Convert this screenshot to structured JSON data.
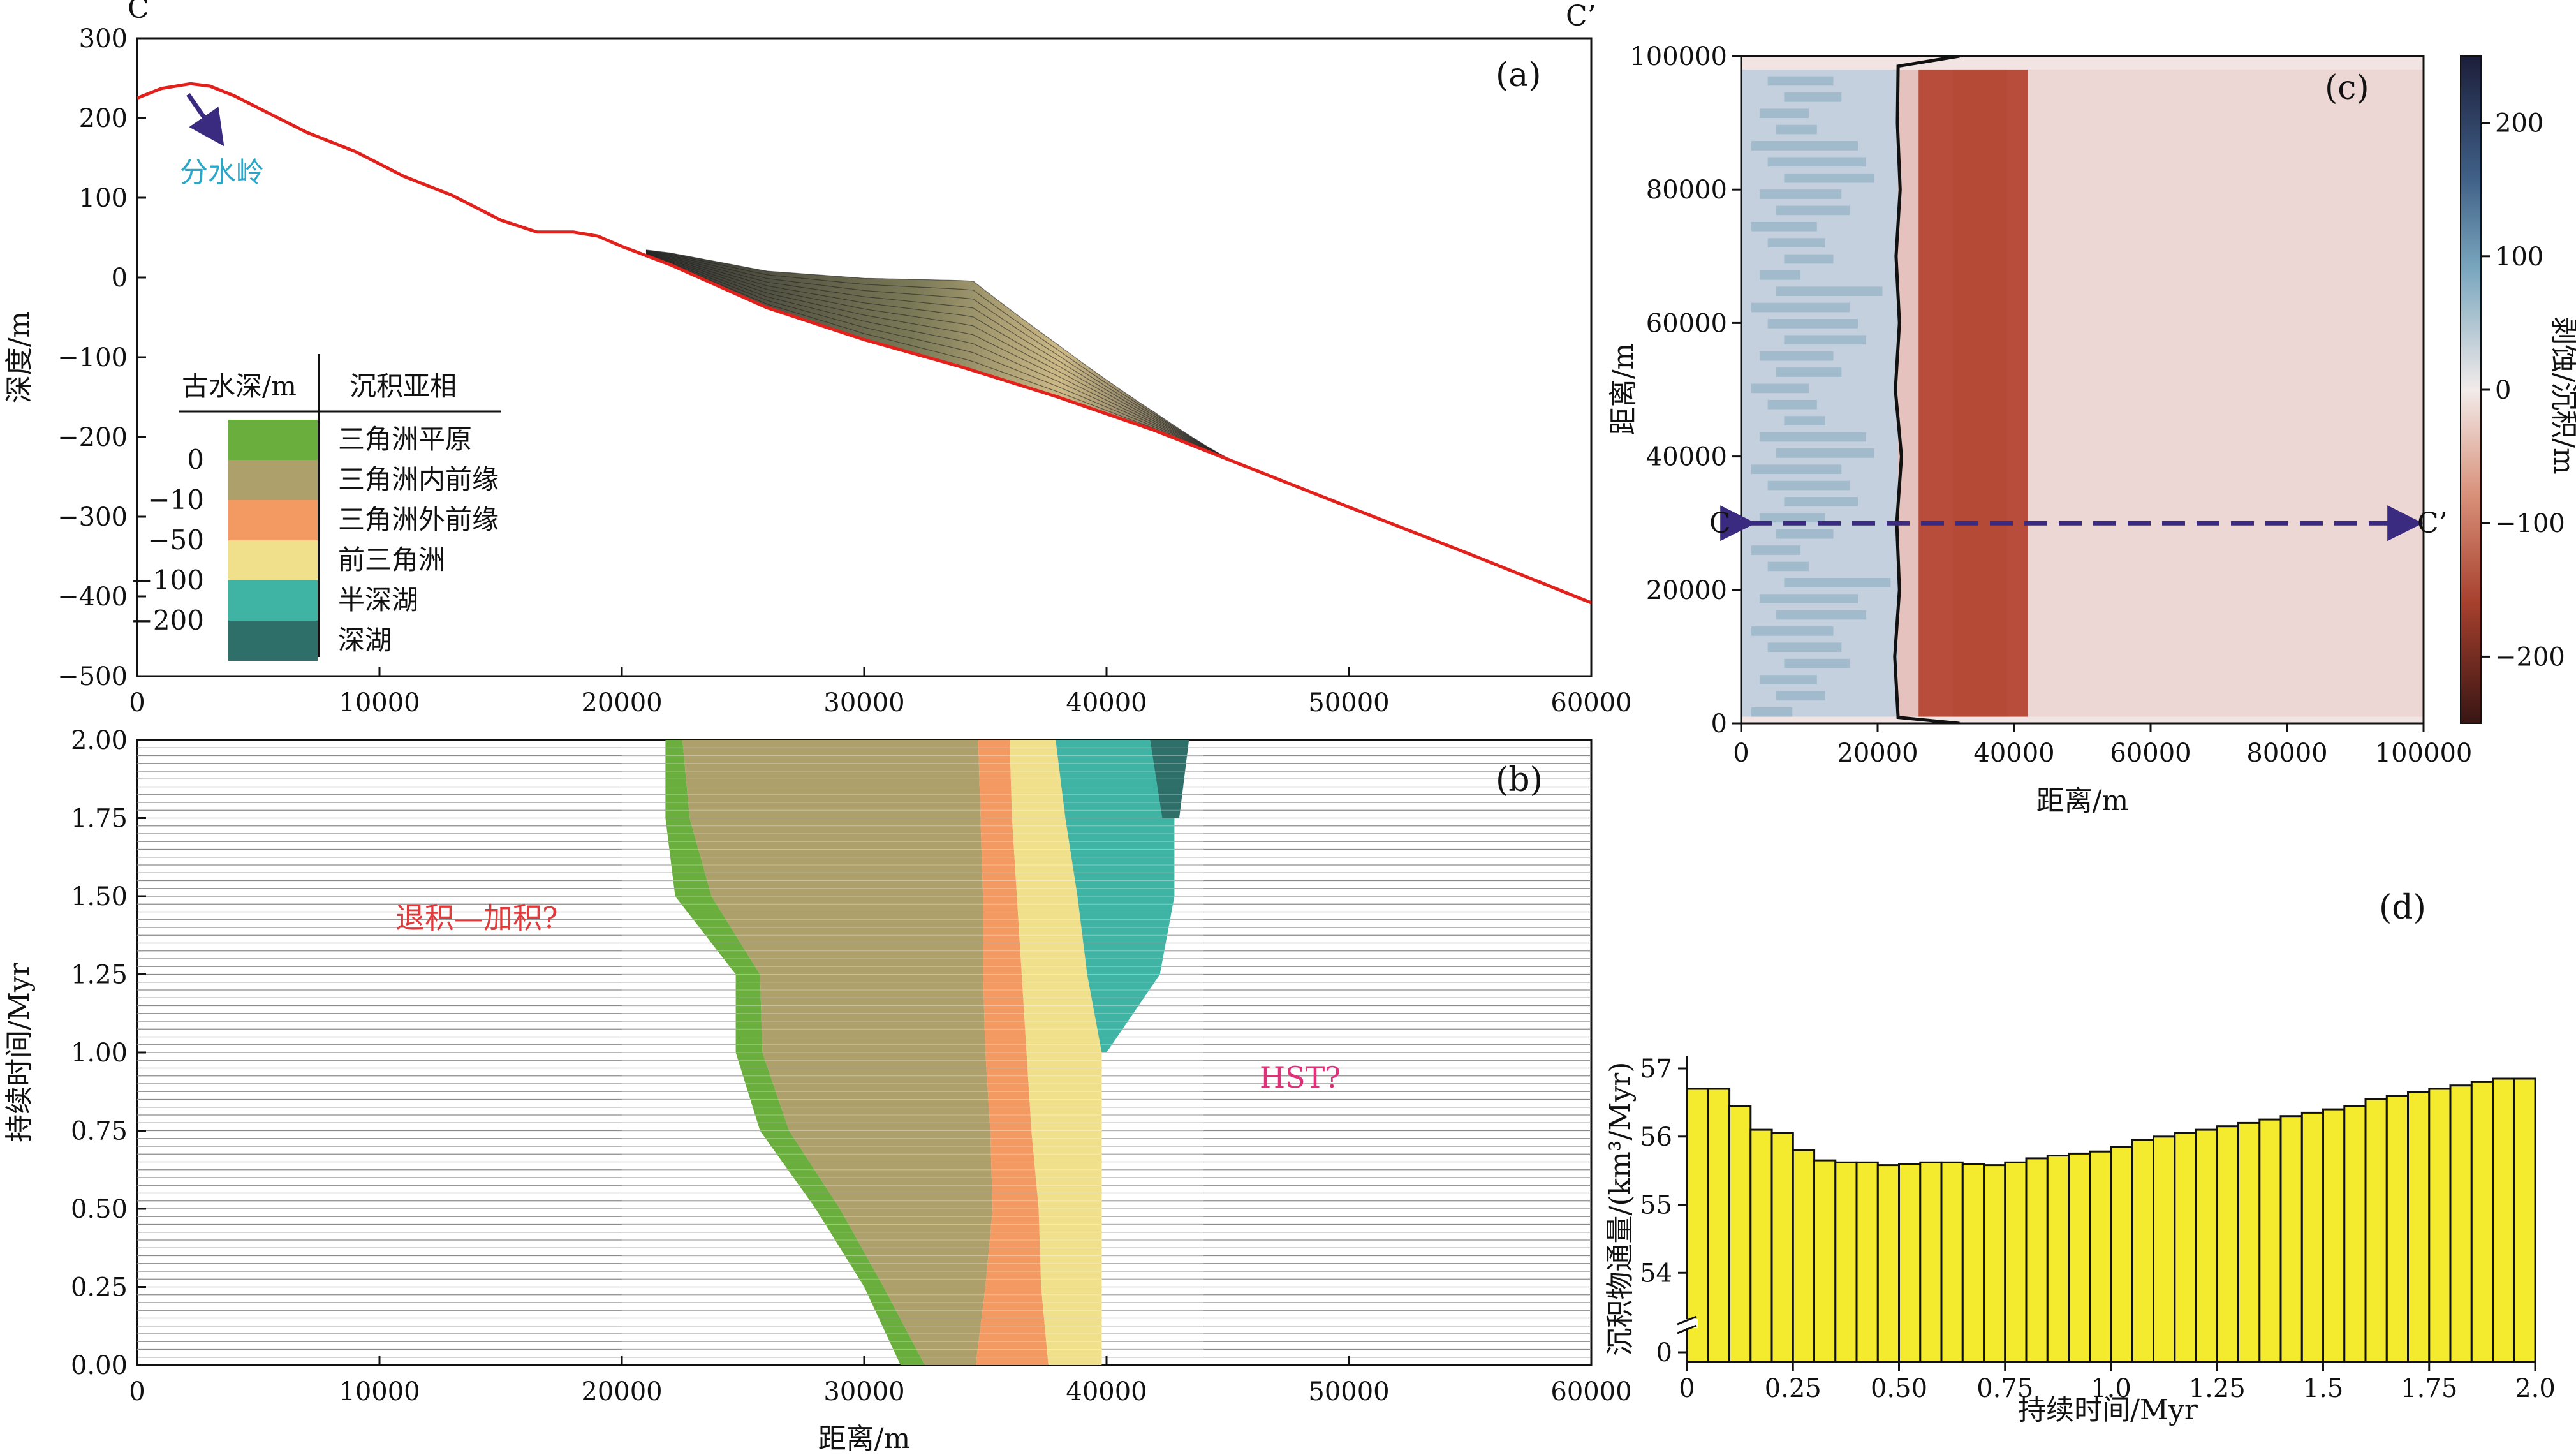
{
  "colors": {
    "profile": "#e2211c",
    "arrow": "#3a2a80",
    "label_cyan": "#2aa6c9",
    "label_red": "#e03a3a",
    "label_magenta": "#e0307a",
    "bar_yellow": "#f5eb2e",
    "delta_plain": "#6aae3d",
    "inner_front": "#ada06b",
    "outer_front": "#f39a62",
    "prodelta": "#f0e08c",
    "semi_deep": "#3fb4a4",
    "deep": "#2e6f6a"
  },
  "panel_a": {
    "label": "(a)",
    "left_marker": "C",
    "right_marker": "C’",
    "ylabel": "深度/m",
    "divide_label": "分水岭",
    "legend": {
      "depth_title": "古水深/m",
      "facies_title": "沉积亚相",
      "depth_ticks": [
        "0",
        "−10",
        "−50",
        "−100",
        "−200"
      ],
      "facies": [
        "三角洲平原",
        "三角洲内前缘",
        "三角洲外前缘",
        "前三角洲",
        "半深湖",
        "深湖"
      ]
    },
    "xticks": [
      "0",
      "10000",
      "20000",
      "30000",
      "40000",
      "50000",
      "60000"
    ],
    "yticks": [
      "300",
      "200",
      "100",
      "0",
      "−100",
      "−200",
      "−300",
      "−400",
      "−500"
    ]
  },
  "panel_b": {
    "label": "(b)",
    "ylabel": "持续时间/Myr",
    "xlabel": "距离/m",
    "note_left": "退积—加积?",
    "note_right": "HST?",
    "xticks": [
      "0",
      "10000",
      "20000",
      "30000",
      "40000",
      "50000",
      "60000"
    ],
    "yticks": [
      "0.00",
      "0.25",
      "0.50",
      "0.75",
      "1.00",
      "1.25",
      "1.50",
      "1.75",
      "2.00"
    ]
  },
  "panel_c": {
    "label": "(c)",
    "xlabel": "距离/m",
    "ylabel": "距离/m",
    "colorbar_label": "剥蚀/沉积/m",
    "left_marker": "C",
    "right_marker": "C’",
    "xticks": [
      "0",
      "20000",
      "40000",
      "60000",
      "80000",
      "100000"
    ],
    "yticks": [
      "0",
      "20000",
      "40000",
      "60000",
      "80000",
      "100000"
    ],
    "cbar_ticks": [
      "200",
      "100",
      "0",
      "−100",
      "−200"
    ]
  },
  "panel_d": {
    "label": "(d)",
    "xlabel": "持续时间/Myr",
    "ylabel": "沉积物通量/(km³/Myr)",
    "xticks": [
      "0",
      "0.25",
      "0.50",
      "0.75",
      "1.0",
      "1.25",
      "1.5",
      "1.75",
      "2.0"
    ],
    "yticks": [
      "57",
      "56",
      "55",
      "54",
      "0"
    ]
  },
  "chart_data": [
    {
      "type": "line",
      "title": "",
      "xlabel": "",
      "ylabel": "深度/m",
      "xlim": [
        0,
        60000
      ],
      "ylim": [
        -500,
        300
      ],
      "series": [
        {
          "name": "",
          "x": [
            0,
            1000,
            2200,
            3000,
            4000,
            5500,
            7000,
            9000,
            11000,
            13000,
            15000,
            16500,
            18000,
            19000,
            20000,
            22000,
            26000,
            30000,
            34000,
            38000,
            42000,
            45000,
            50000,
            55000,
            60000
          ],
          "y": [
            225,
            237,
            243,
            240,
            228,
            205,
            182,
            158,
            127,
            103,
            72,
            57,
            57,
            52,
            39,
            16,
            -38,
            -78,
            -112,
            -150,
            -192,
            -228,
            -288,
            -347,
            -408
          ]
        }
      ]
    },
    {
      "type": "area",
      "title": "",
      "xlabel": "距离/m",
      "ylabel": "持续时间/Myr",
      "xlim": [
        0,
        60000
      ],
      "ylim": [
        0,
        2
      ],
      "time": [
        0.0,
        0.25,
        0.5,
        0.75,
        1.0,
        1.25,
        1.5,
        1.75,
        2.0
      ],
      "series": [
        {
          "name": "三角洲平原",
          "left": [
            31500,
            30000,
            28000,
            25700,
            24700,
            24700,
            22200,
            21800,
            21800
          ],
          "right": [
            32500,
            30800,
            29000,
            26900,
            25800,
            25700,
            23700,
            22800,
            22500
          ]
        },
        {
          "name": "三角洲内前缘",
          "left": [
            32500,
            30800,
            29000,
            26900,
            25800,
            25700,
            23700,
            22800,
            22500
          ],
          "right": [
            34600,
            35000,
            35300,
            35200,
            35000,
            34900,
            34900,
            34800,
            34700
          ]
        },
        {
          "name": "三角洲外前缘",
          "left": [
            34600,
            35000,
            35300,
            35200,
            35000,
            34900,
            34900,
            34800,
            34700
          ],
          "right": [
            37600,
            37300,
            37200,
            36900,
            36700,
            36500,
            36300,
            36100,
            36000
          ]
        },
        {
          "name": "前三角洲",
          "left": [
            37600,
            37300,
            37200,
            36900,
            36700,
            36500,
            36300,
            36100,
            36000
          ],
          "right": [
            39800,
            39800,
            39800,
            39800,
            39800,
            39200,
            38800,
            38300,
            37900
          ]
        },
        {
          "name": "半深湖",
          "left": [
            null,
            null,
            null,
            null,
            39800,
            39200,
            38800,
            38300,
            37900
          ],
          "right": [
            null,
            null,
            null,
            null,
            40000,
            42200,
            42800,
            42800,
            42500
          ]
        },
        {
          "name": "深湖",
          "left": [
            null,
            null,
            null,
            null,
            null,
            null,
            null,
            42300,
            41800
          ],
          "right": [
            null,
            null,
            null,
            null,
            null,
            null,
            null,
            43000,
            43400
          ]
        }
      ]
    },
    {
      "type": "heatmap",
      "title": "",
      "xlabel": "距离/m",
      "ylabel": "距离/m",
      "xlim": [
        0,
        100000
      ],
      "ylim": [
        0,
        100000
      ],
      "colorbar": {
        "label": "剥蚀/沉积/m",
        "range": [
          -250,
          250
        ],
        "ticks": [
          200,
          100,
          0,
          -100,
          -200
        ]
      },
      "zones": [
        {
          "x_range": [
            0,
            23000
          ],
          "value": 60
        },
        {
          "x_range": [
            23000,
            26000
          ],
          "value": -40
        },
        {
          "x_range": [
            26000,
            42000
          ],
          "value": -180
        },
        {
          "x_range": [
            42000,
            100000
          ],
          "value": -15
        }
      ],
      "boundary": {
        "x": [
          32000,
          23000,
          22500,
          23200,
          22800,
          23500,
          22600,
          23200,
          22700,
          23300,
          22900,
          23000,
          32000
        ],
        "y": [
          0,
          900,
          10000,
          20000,
          30000,
          40000,
          50000,
          60000,
          70000,
          80000,
          90000,
          98500,
          100000
        ]
      },
      "section_line": {
        "y": 30000,
        "x_range": [
          0,
          100000
        ]
      }
    },
    {
      "type": "bar",
      "title": "",
      "xlabel": "持续时间/Myr",
      "ylabel": "沉积物通量/(km³/Myr)",
      "xlim": [
        0,
        2.0
      ],
      "ylim": [
        53.3,
        57
      ],
      "x": [
        0.025,
        0.075,
        0.125,
        0.175,
        0.225,
        0.275,
        0.325,
        0.375,
        0.425,
        0.475,
        0.525,
        0.575,
        0.625,
        0.675,
        0.725,
        0.775,
        0.825,
        0.875,
        0.925,
        0.975,
        1.025,
        1.075,
        1.125,
        1.175,
        1.225,
        1.275,
        1.325,
        1.375,
        1.425,
        1.475,
        1.525,
        1.575,
        1.625,
        1.675,
        1.725,
        1.775,
        1.825,
        1.875,
        1.925,
        1.975
      ],
      "values": [
        56.7,
        56.7,
        56.45,
        56.1,
        56.05,
        55.8,
        55.65,
        55.62,
        55.62,
        55.58,
        55.6,
        55.62,
        55.62,
        55.6,
        55.58,
        55.62,
        55.68,
        55.72,
        55.75,
        55.78,
        55.85,
        55.95,
        56.0,
        56.05,
        56.1,
        56.15,
        56.2,
        56.25,
        56.3,
        56.35,
        56.4,
        56.45,
        56.55,
        56.6,
        56.65,
        56.7,
        56.75,
        56.8,
        56.85,
        56.85
      ]
    }
  ]
}
